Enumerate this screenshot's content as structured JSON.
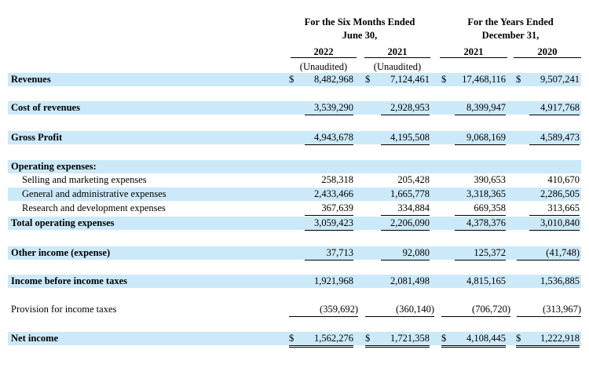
{
  "header": {
    "six_months_line1": "For the Six Months Ended",
    "six_months_line2": "June 30,",
    "years_line1": "For the Years Ended",
    "years_line2": "December 31,",
    "years": [
      "2022",
      "2021",
      "2021",
      "2020"
    ],
    "unaudited": [
      "(Unaudited)",
      "(Unaudited)"
    ]
  },
  "rows": {
    "revenues": {
      "label": "Revenues",
      "dollar": "$",
      "values": [
        "8,482,968",
        "7,124,461",
        "17,468,116",
        "9,507,241"
      ]
    },
    "cost_of_revenues": {
      "label": "Cost of revenues",
      "values": [
        "3,539,290",
        "2,928,953",
        "8,399,947",
        "4,917,768"
      ]
    },
    "gross_profit": {
      "label": "Gross Profit",
      "values": [
        "4,943,678",
        "4,195,508",
        "9,068,169",
        "4,589,473"
      ]
    },
    "operating_expenses": {
      "label": "Operating expenses:"
    },
    "selling": {
      "label": "Selling and marketing expenses",
      "values": [
        "258,318",
        "205,428",
        "390,653",
        "410,670"
      ]
    },
    "general": {
      "label": "General and administrative expenses",
      "values": [
        "2,433,466",
        "1,665,778",
        "3,318,365",
        "2,286,505"
      ]
    },
    "research": {
      "label": "Research and development expenses",
      "values": [
        "367,639",
        "334,884",
        "669,358",
        "313,665"
      ]
    },
    "total_opex": {
      "label": "Total operating expenses",
      "values": [
        "3,059,423",
        "2,206,090",
        "4,378,376",
        "3,010,840"
      ]
    },
    "other_income": {
      "label": "Other income (expense)",
      "values": [
        "37,713",
        "92,080",
        "125,372",
        "(41,748)"
      ]
    },
    "income_before_tax": {
      "label": "Income before income taxes",
      "values": [
        "1,921,968",
        "2,081,498",
        "4,815,165",
        "1,536,885"
      ]
    },
    "provision": {
      "label": "Provision for income taxes",
      "values": [
        "(359,692)",
        "(360,140)",
        "(706,720)",
        "(313,967)"
      ]
    },
    "net_income": {
      "label": "Net income",
      "dollar": "$",
      "values": [
        "1,562,276",
        "1,721,358",
        "4,108,445",
        "1,222,918"
      ]
    }
  }
}
